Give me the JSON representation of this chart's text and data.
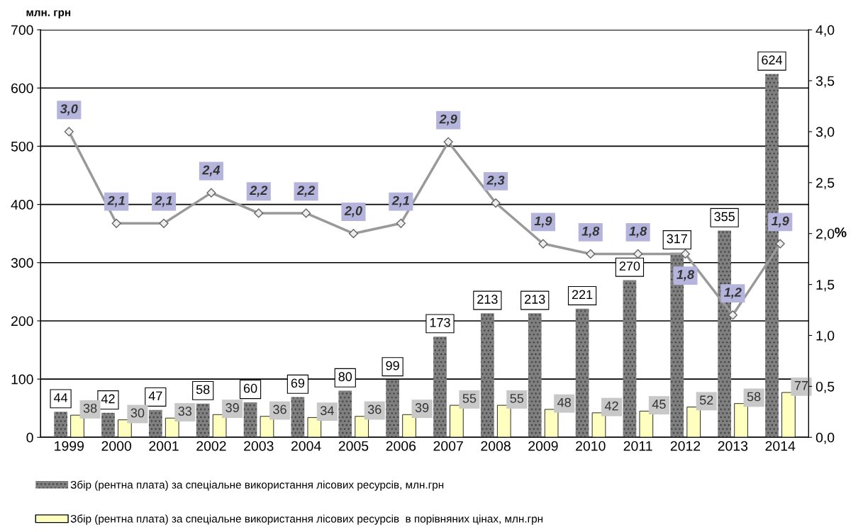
{
  "chart_data": {
    "type": "bar",
    "ylabel": "млн. грн",
    "y2label": "%",
    "categories": [
      "1999",
      "2000",
      "2001",
      "2002",
      "2003",
      "2004",
      "2005",
      "2006",
      "2007",
      "2008",
      "2009",
      "2010",
      "2011",
      "2012",
      "2013",
      "2014"
    ],
    "series": [
      {
        "name": "Збір (рентна плата) за спеціальне використання лісових ресурсів, млн.грн",
        "color": "#808080",
        "values": [
          44,
          42,
          47,
          58,
          60,
          69,
          80,
          99,
          173,
          213,
          213,
          221,
          270,
          317,
          355,
          624
        ],
        "value_labels": [
          "44",
          "42",
          "47",
          "58",
          "60",
          "69",
          "80",
          "99",
          "173",
          "213",
          "213",
          "221",
          "270",
          "317",
          "355",
          "624"
        ]
      },
      {
        "name": "Збір (рентна плата) за спеціальне використання лісових ресурсів  в порівняних цінах, млн.грн",
        "color": "#ffffc0",
        "values": [
          38,
          30,
          33,
          39,
          36,
          34,
          36,
          39,
          55,
          55,
          48,
          42,
          45,
          52,
          58,
          77
        ],
        "value_labels": [
          "38",
          "30",
          "33",
          "39",
          "36",
          "34",
          "36",
          "39",
          "55",
          "55",
          "48",
          "42",
          "45",
          "52",
          "58",
          "77"
        ]
      },
      {
        "type": "line",
        "axis": "y2",
        "color": "#999999",
        "marker": "diamond",
        "values": [
          3.0,
          2.1,
          2.1,
          2.4,
          2.2,
          2.2,
          2.0,
          2.1,
          2.9,
          2.3,
          1.9,
          1.8,
          1.8,
          1.8,
          1.2,
          1.9
        ],
        "value_labels": [
          "3,0",
          "2,1",
          "2,1",
          "2,4",
          "2,2",
          "2,2",
          "2,0",
          "2,1",
          "2,9",
          "2,3",
          "1,9",
          "1,8",
          "1,8",
          "1,8",
          "1,2",
          "1,9"
        ]
      }
    ],
    "ylim": [
      0,
      700
    ],
    "yticks": [
      0,
      100,
      200,
      300,
      400,
      500,
      600,
      700
    ],
    "y2lim": [
      0,
      4
    ],
    "y2ticks": [
      {
        "value": 0,
        "label": "0,0"
      },
      {
        "value": 0.5,
        "label": "0,5"
      },
      {
        "value": 1,
        "label": "1,0"
      },
      {
        "value": 1.5,
        "label": "1,5"
      },
      {
        "value": 2,
        "label": "2,0"
      },
      {
        "value": 2.5,
        "label": "2,5"
      },
      {
        "value": 3,
        "label": "3,0"
      },
      {
        "value": 3.5,
        "label": "3,5"
      },
      {
        "value": 4,
        "label": "4,0"
      }
    ],
    "grid": "y",
    "legend": "bottom"
  }
}
